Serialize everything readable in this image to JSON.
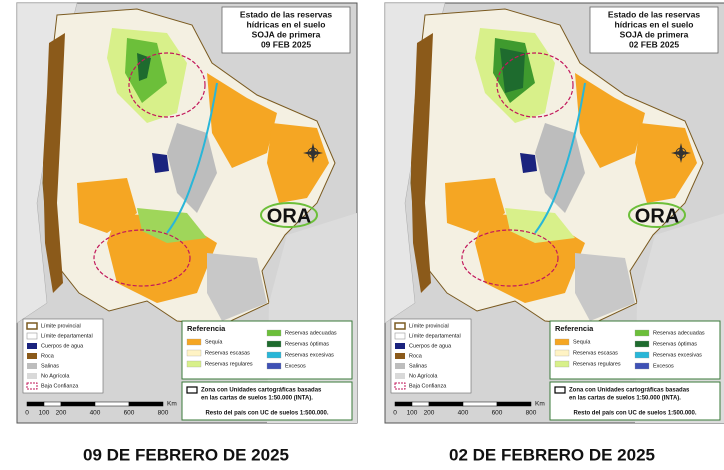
{
  "maps": [
    {
      "title": [
        "Estado de las reservas",
        "hídricas en el suelo",
        "SOJA de primera",
        "09 FEB 2025"
      ],
      "caption": "09 DE FEBRERO DE 2025"
    },
    {
      "title": [
        "Estado de las reservas",
        "hídricas en el suelo",
        "SOJA de primera",
        "02 FEB 2025"
      ],
      "caption": "02 DE FEBRERO DE 2025"
    }
  ],
  "logo": "ORA",
  "legend": [
    "Límite provincial",
    "Límite departamental",
    "Cuerpos de agua",
    "Roca",
    "Salinas",
    "No Agrícola",
    "Baja Confianza"
  ],
  "scale": {
    "unit": "Km",
    "labels": [
      "0",
      "100",
      "200",
      "400",
      "600",
      "800"
    ]
  },
  "referencia": {
    "title": "Referencia",
    "items": [
      "Sequía",
      "Reservas escasas",
      "Reservas regulares",
      "Reservas adecuadas",
      "Reservas óptimas",
      "Reservas excesivas",
      "Excesos"
    ]
  },
  "note": {
    "zona": [
      "Zona con Unidades cartográficas basadas",
      "en las cartas de suelos 1:50.000 (INTA)."
    ],
    "resto": "Resto del país con UC de suelos 1:500.000."
  }
}
